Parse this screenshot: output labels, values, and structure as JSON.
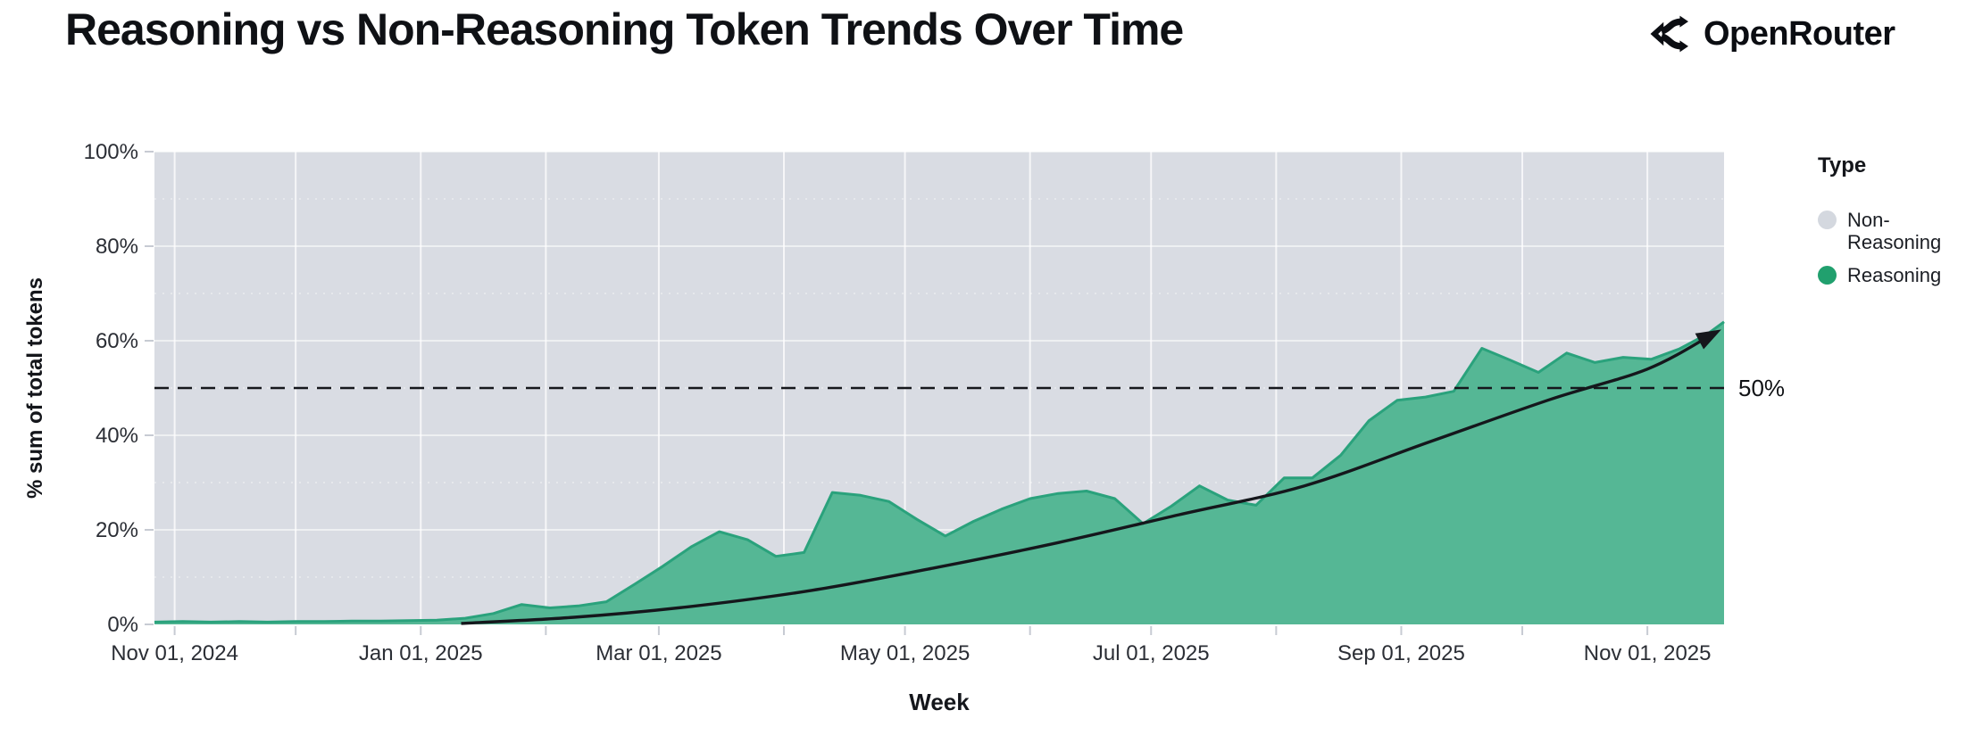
{
  "header": {
    "title": "Reasoning vs Non-Reasoning Token Trends Over Time",
    "brand": "OpenRouter"
  },
  "legend": {
    "title": "Type",
    "items": [
      {
        "label": "Non-Reasoning",
        "color": "#d4d8df"
      },
      {
        "label": "Reasoning",
        "color": "#21a06e"
      }
    ]
  },
  "colors": {
    "plot_background_non_reasoning": "#d9dce3",
    "reasoning_fill": "#55b795",
    "reasoning_edge": "#2aa27c",
    "gridline": "rgba(255,255,255,0.75)",
    "minor_gridline": "rgba(255,255,255,0.45)",
    "tick_mark": "#c7cbd3",
    "ink": "#15171c"
  },
  "chart_data": {
    "type": "area",
    "stacked_to_100_percent": true,
    "title": "Reasoning vs Non-Reasoning Token Trends Over Time",
    "xlabel": "Week",
    "ylabel": "% sum of total tokens",
    "ylim": [
      0,
      100
    ],
    "grid": true,
    "legend_position": "right",
    "x_domain": [
      "2024-10-27",
      "2025-11-20"
    ],
    "x_axis": {
      "major_ticks": [
        {
          "date": "2024-11-01",
          "label": "Nov 01, 2024"
        },
        {
          "date": "2025-01-01",
          "label": "Jan 01, 2025"
        },
        {
          "date": "2025-03-01",
          "label": "Mar 01, 2025"
        },
        {
          "date": "2025-05-01",
          "label": "May 01, 2025"
        },
        {
          "date": "2025-07-01",
          "label": "Jul 01, 2025"
        },
        {
          "date": "2025-09-01",
          "label": "Sep 01, 2025"
        },
        {
          "date": "2025-11-01",
          "label": "Nov 01, 2025"
        }
      ],
      "minor_tick_dates": [
        "2024-12-01",
        "2025-02-01",
        "2025-04-01",
        "2025-06-01",
        "2025-08-01",
        "2025-10-01"
      ]
    },
    "y_axis": {
      "ticks": [
        {
          "value": 0,
          "label": "0%"
        },
        {
          "value": 20,
          "label": "20%"
        },
        {
          "value": 40,
          "label": "40%"
        },
        {
          "value": 60,
          "label": "60%"
        },
        {
          "value": 80,
          "label": "80%"
        },
        {
          "value": 100,
          "label": "100%"
        }
      ]
    },
    "series": [
      {
        "name": "Non-Reasoning",
        "role": "background-remainder-to-100%",
        "color": "#d9dce3"
      },
      {
        "name": "Reasoning",
        "color": "#55b795",
        "line_color": "#2aa27c",
        "points": [
          [
            "2024-10-27",
            0.5
          ],
          [
            "2024-11-03",
            0.6
          ],
          [
            "2024-11-10",
            0.5
          ],
          [
            "2024-11-17",
            0.6
          ],
          [
            "2024-11-24",
            0.5
          ],
          [
            "2024-12-01",
            0.6
          ],
          [
            "2024-12-08",
            0.6
          ],
          [
            "2024-12-15",
            0.7
          ],
          [
            "2024-12-22",
            0.7
          ],
          [
            "2024-12-29",
            0.8
          ],
          [
            "2025-01-05",
            0.9
          ],
          [
            "2025-01-12",
            1.3
          ],
          [
            "2025-01-19",
            2.3
          ],
          [
            "2025-01-26",
            4.2
          ],
          [
            "2025-02-02",
            3.5
          ],
          [
            "2025-02-09",
            3.9
          ],
          [
            "2025-02-16",
            4.8
          ],
          [
            "2025-02-23",
            8.5
          ],
          [
            "2025-03-02",
            12.3
          ],
          [
            "2025-03-09",
            16.4
          ],
          [
            "2025-03-16",
            19.6
          ],
          [
            "2025-03-23",
            17.9
          ],
          [
            "2025-03-30",
            14.4
          ],
          [
            "2025-04-06",
            15.2
          ],
          [
            "2025-04-13",
            27.9
          ],
          [
            "2025-04-20",
            27.3
          ],
          [
            "2025-04-27",
            26.0
          ],
          [
            "2025-05-04",
            22.2
          ],
          [
            "2025-05-11",
            18.7
          ],
          [
            "2025-05-18",
            21.8
          ],
          [
            "2025-05-25",
            24.4
          ],
          [
            "2025-06-01",
            26.6
          ],
          [
            "2025-06-08",
            27.7
          ],
          [
            "2025-06-15",
            28.2
          ],
          [
            "2025-06-22",
            26.6
          ],
          [
            "2025-06-29",
            21.3
          ],
          [
            "2025-07-06",
            25.0
          ],
          [
            "2025-07-13",
            29.3
          ],
          [
            "2025-07-20",
            26.3
          ],
          [
            "2025-07-27",
            25.2
          ],
          [
            "2025-08-03",
            31.0
          ],
          [
            "2025-08-10",
            31.0
          ],
          [
            "2025-08-17",
            35.8
          ],
          [
            "2025-08-24",
            43.1
          ],
          [
            "2025-08-31",
            47.4
          ],
          [
            "2025-09-07",
            48.1
          ],
          [
            "2025-09-14",
            49.3
          ],
          [
            "2025-09-21",
            58.4
          ],
          [
            "2025-09-28",
            55.9
          ],
          [
            "2025-10-05",
            53.3
          ],
          [
            "2025-10-12",
            57.4
          ],
          [
            "2025-10-19",
            55.4
          ],
          [
            "2025-10-26",
            56.5
          ],
          [
            "2025-11-02",
            56.1
          ],
          [
            "2025-11-09",
            58.3
          ],
          [
            "2025-11-16",
            61.5
          ],
          [
            "2025-11-20",
            64.0
          ]
        ]
      }
    ],
    "reference_line": {
      "value": 50,
      "label": "50%",
      "style": "dashed"
    },
    "trend_arrow": {
      "style": "smooth exponential arrow",
      "points": [
        [
          "2025-01-11",
          0.2
        ],
        [
          "2025-02-08",
          1.5
        ],
        [
          "2025-03-08",
          3.7
        ],
        [
          "2025-04-08",
          7.2
        ],
        [
          "2025-05-08",
          11.9
        ],
        [
          "2025-06-08",
          17.3
        ],
        [
          "2025-07-08",
          23.2
        ],
        [
          "2025-08-08",
          29.3
        ],
        [
          "2025-09-08",
          38.6
        ],
        [
          "2025-10-08",
          47.6
        ],
        [
          "2025-11-01",
          54.0
        ],
        [
          "2025-11-17",
          61.3
        ]
      ]
    }
  }
}
